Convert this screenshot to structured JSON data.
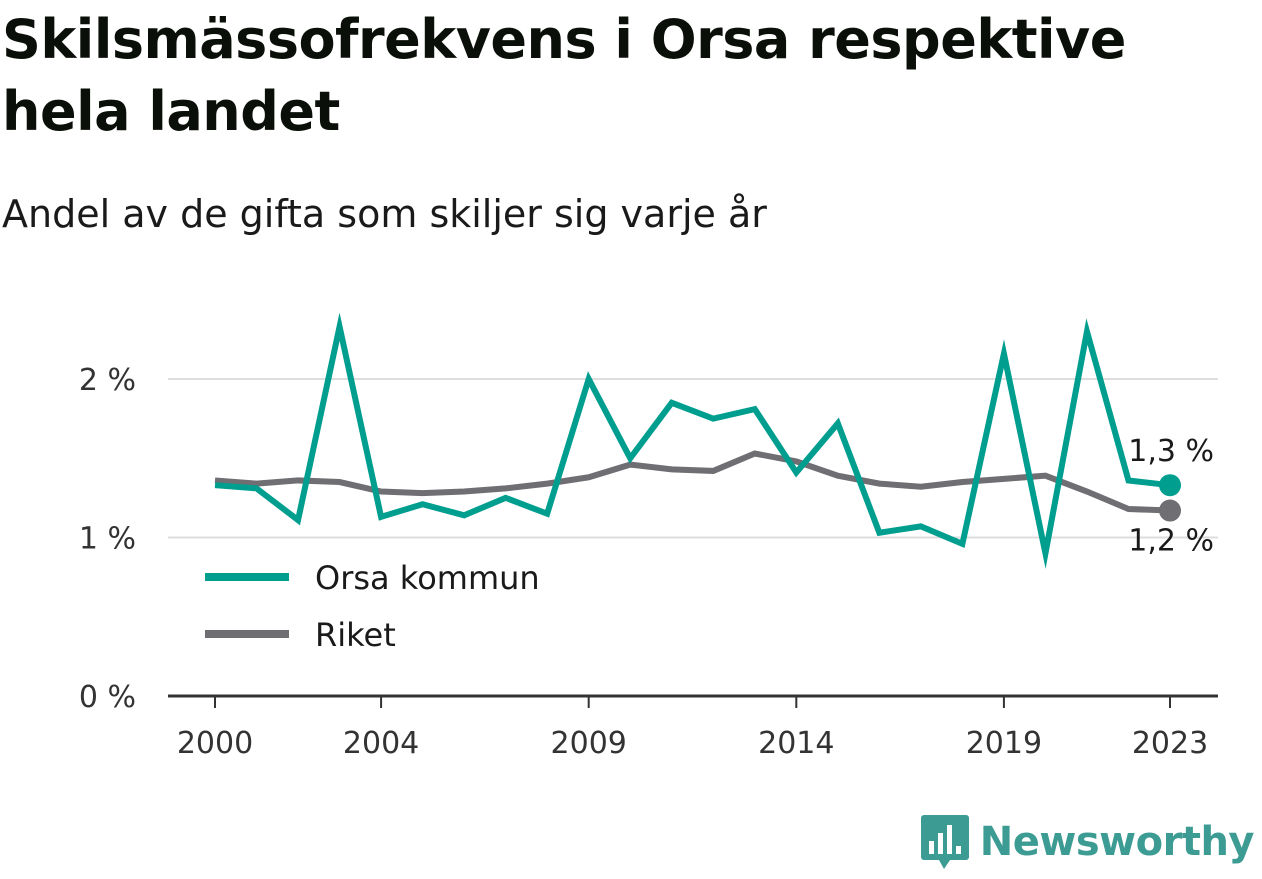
{
  "header": {
    "title": "Skilsmässofrekvens i Orsa respektive hela landet",
    "subtitle": "Andel av de gifta som skiljer sig varje år"
  },
  "brand": {
    "name": "Newsworthy",
    "color": "#3c9b92"
  },
  "chart_data": {
    "type": "line",
    "title": "Skilsmässofrekvens i Orsa respektive hela landet",
    "subtitle": "Andel av de gifta som skiljer sig varje år",
    "x": [
      2000,
      2001,
      2002,
      2003,
      2004,
      2005,
      2006,
      2007,
      2008,
      2009,
      2010,
      2011,
      2012,
      2013,
      2014,
      2015,
      2016,
      2017,
      2018,
      2019,
      2020,
      2021,
      2022,
      2023
    ],
    "x_ticks": [
      2000,
      2004,
      2009,
      2014,
      2019,
      2023
    ],
    "y_ticks": [
      {
        "value": 0,
        "label": "0 %"
      },
      {
        "value": 1,
        "label": "1 %"
      },
      {
        "value": 2,
        "label": "2 %"
      }
    ],
    "ylim": [
      0,
      2.5
    ],
    "grid": true,
    "legend_position": "bottom-left",
    "series": [
      {
        "name": "Orsa kommun",
        "color": "#009e8f",
        "values": [
          1.33,
          1.31,
          1.11,
          2.33,
          1.13,
          1.21,
          1.14,
          1.25,
          1.15,
          2.0,
          1.5,
          1.85,
          1.75,
          1.81,
          1.41,
          1.72,
          1.03,
          1.07,
          0.96,
          2.16,
          0.9,
          2.3,
          1.36,
          1.33
        ],
        "end_label": "1,3 %"
      },
      {
        "name": "Riket",
        "color": "#6e6e73",
        "values": [
          1.36,
          1.34,
          1.36,
          1.35,
          1.29,
          1.28,
          1.29,
          1.31,
          1.34,
          1.38,
          1.46,
          1.43,
          1.42,
          1.53,
          1.48,
          1.39,
          1.34,
          1.32,
          1.35,
          1.37,
          1.39,
          1.29,
          1.18,
          1.17
        ],
        "end_label": "1,2 %"
      }
    ]
  }
}
